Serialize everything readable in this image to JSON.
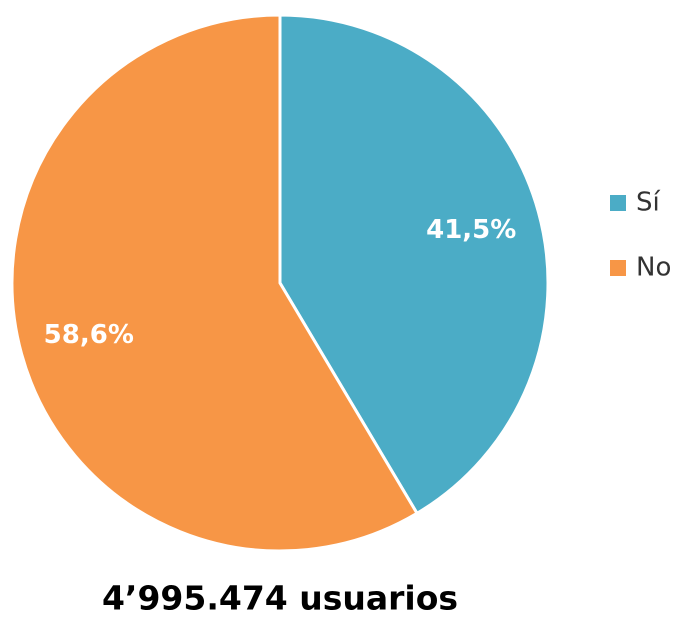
{
  "chart_data": {
    "type": "pie",
    "title": "4’995.474 usuarios",
    "categories": [
      "Sí",
      "No"
    ],
    "values": [
      41.5,
      58.6
    ],
    "value_labels": [
      "41,5%",
      "58,6%"
    ],
    "colors": [
      "#4bacc6",
      "#f79646"
    ],
    "legend": "right"
  }
}
